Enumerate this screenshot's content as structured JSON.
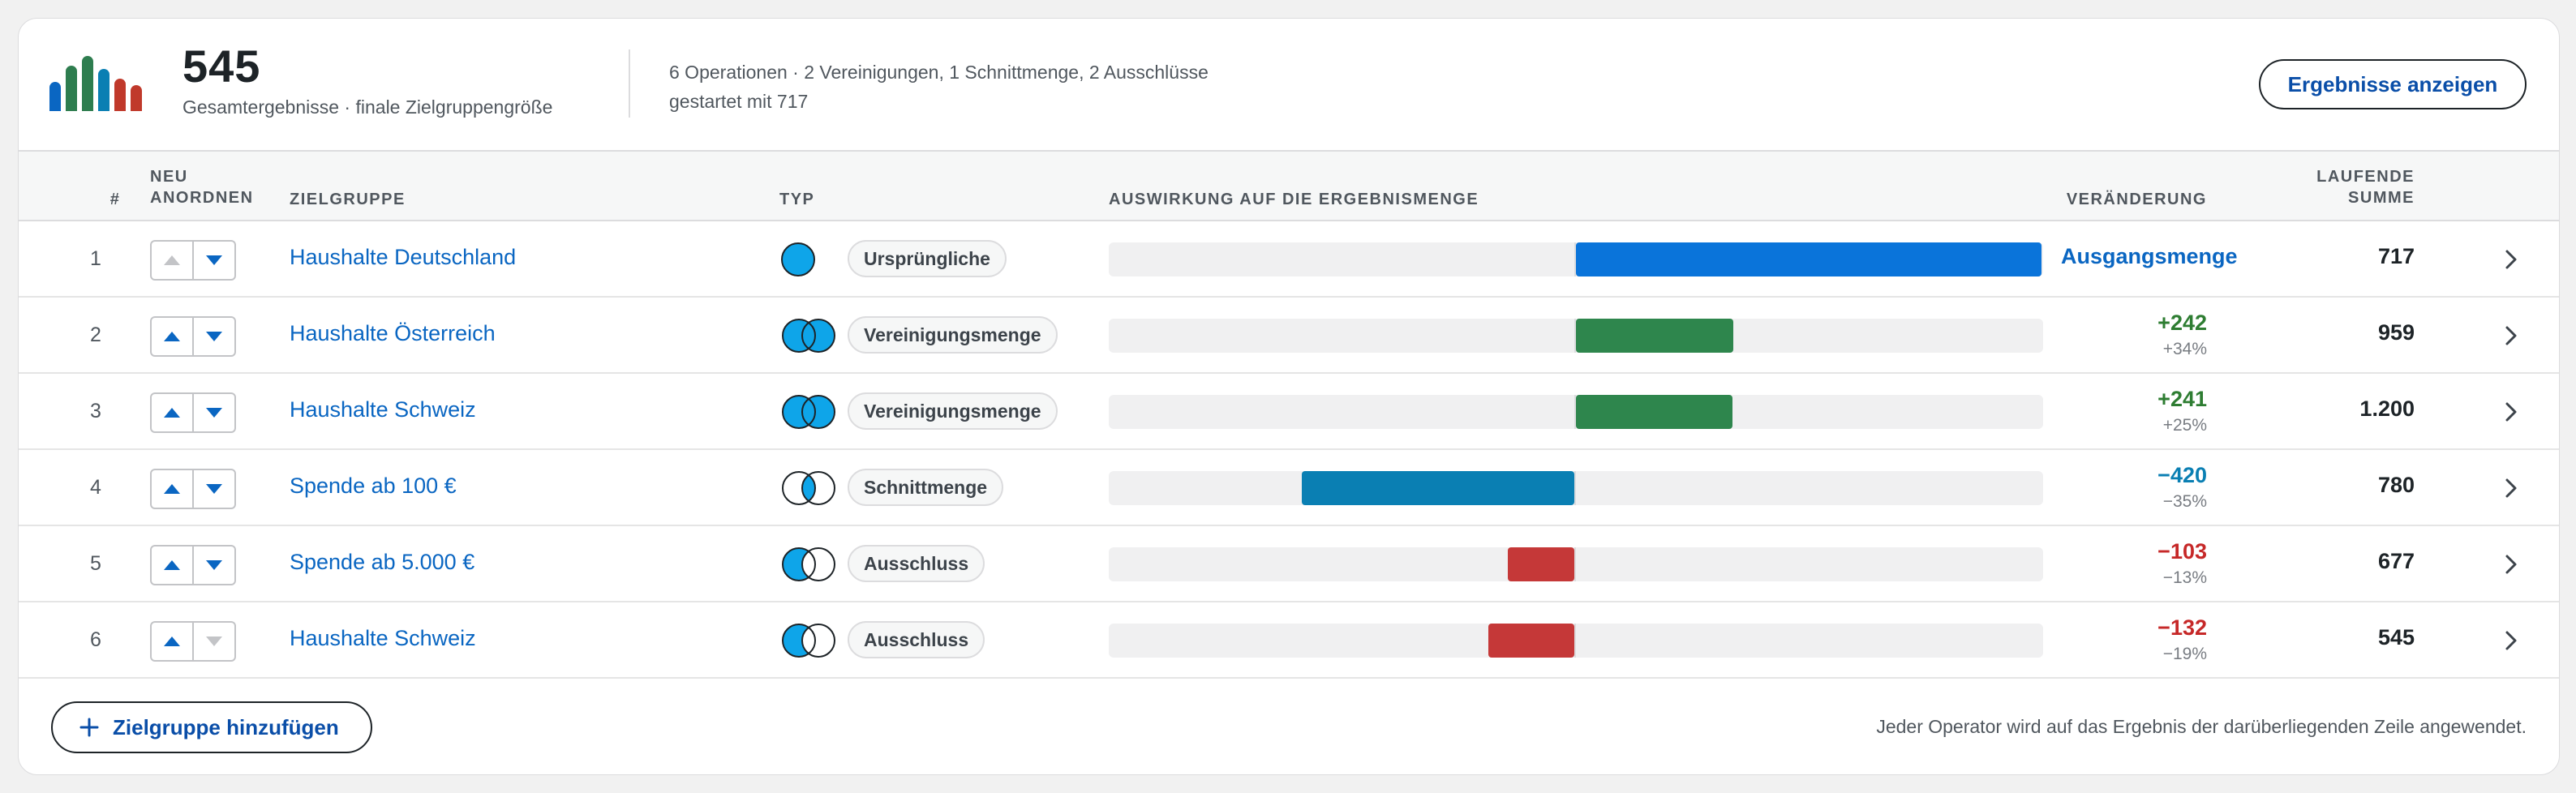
{
  "summary": {
    "total": "545",
    "caption": "Gesamtergebnisse · finale Zielgruppengröße",
    "operations_line": "6 Operationen · 2 Vereinigungen, 1 Schnittmenge, 2 Ausschlüsse",
    "started_line": "gestartet mit 717",
    "show_results_label": "Ergebnisse anzeigen",
    "logo_colors": [
      "#0a66c2",
      "#2e7d4f",
      "#2e7d4f",
      "#0a7fb3",
      "#c0392b",
      "#c0392b"
    ]
  },
  "table": {
    "headers": {
      "index": "#",
      "reorder": "NEU ANORDNEN",
      "segment": "ZIELGRUPPE",
      "type": "TYP",
      "impact": "AUSWIRKUNG AUF DIE ERGEBNISMENGE",
      "change": "VERÄNDERUNG",
      "running": "LAUFENDE SUMME"
    },
    "rows": [
      {
        "index": "1",
        "segment": "Haushalte Deutschland",
        "type": "Ursprüngliche",
        "venn": "single",
        "change": "Ausgangsmenge",
        "change_pct": "",
        "running": "717",
        "delta": 717,
        "bar_color": "#0a74da",
        "up_disabled": true,
        "down_disabled": false
      },
      {
        "index": "2",
        "segment": "Haushalte Österreich",
        "type": "Vereinigungsmenge",
        "venn": "union",
        "change": "+242",
        "change_pct": "+34%",
        "running": "959",
        "delta": 242,
        "bar_color": "#2e864d",
        "up_disabled": false,
        "down_disabled": false
      },
      {
        "index": "3",
        "segment": "Haushalte Schweiz",
        "type": "Vereinigungsmenge",
        "venn": "union",
        "change": "+241",
        "change_pct": "+25%",
        "running": "1.200",
        "delta": 241,
        "bar_color": "#2e864d",
        "up_disabled": false,
        "down_disabled": false
      },
      {
        "index": "4",
        "segment": "Spende ab 100 €",
        "type": "Schnittmenge",
        "venn": "intersection",
        "change": "−420",
        "change_pct": "−35%",
        "running": "780",
        "delta": -420,
        "bar_color": "#0a7fb3",
        "up_disabled": false,
        "down_disabled": false
      },
      {
        "index": "5",
        "segment": "Spende ab 5.000 €",
        "type": "Ausschluss",
        "venn": "exclusion",
        "change": "−103",
        "change_pct": "−13%",
        "running": "677",
        "delta": -103,
        "bar_color": "#c53838",
        "up_disabled": false,
        "down_disabled": false
      },
      {
        "index": "6",
        "segment": "Haushalte Schweiz",
        "type": "Ausschluss",
        "venn": "exclusion",
        "change": "−132",
        "change_pct": "−19%",
        "running": "545",
        "delta": -132,
        "bar_color": "#c53838",
        "up_disabled": false,
        "down_disabled": true
      }
    ],
    "change_colors": {
      "positive": "#2e7d32",
      "intersection": "#0a7fb3",
      "negative": "#c62828"
    }
  },
  "footer": {
    "add_label": "Zielgruppe hinzufügen",
    "note": "Jeder Operator wird auf das Ergebnis der darüberliegenden Zeile angewendet."
  }
}
